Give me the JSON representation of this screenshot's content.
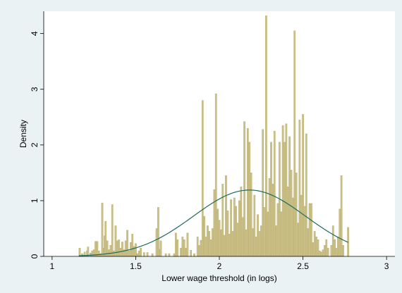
{
  "chart_data": {
    "type": "bar",
    "title": "",
    "xlabel": "Lower wage threshold (in logs)",
    "ylabel": "Density",
    "xlim": [
      0.95,
      3.05
    ],
    "ylim": [
      0,
      4.4
    ],
    "xticks": [
      {
        "value": 1,
        "label": "1"
      },
      {
        "value": 1.5,
        "label": "1.5"
      },
      {
        "value": 2,
        "label": "2"
      },
      {
        "value": 2.5,
        "label": "2.5"
      },
      {
        "value": 3,
        "label": "3"
      }
    ],
    "yticks": [
      {
        "value": 0,
        "label": "0"
      },
      {
        "value": 1,
        "label": "1"
      },
      {
        "value": 2,
        "label": "2"
      },
      {
        "value": 3,
        "label": "3"
      },
      {
        "value": 4,
        "label": "4"
      }
    ],
    "grid": false,
    "colors": {
      "bars": "#cbc188",
      "bar_edge": "#b5a96a",
      "curve": "#1d6b5c",
      "plot_bg": "#ffffff",
      "page_bg": "#eaf2f3"
    },
    "histogram": {
      "bin_width": 0.0097,
      "bins": [
        [
          1.165,
          0.15
        ],
        [
          1.18,
          0.05
        ],
        [
          1.195,
          0.08
        ],
        [
          1.21,
          0.1
        ],
        [
          1.215,
          0.17
        ],
        [
          1.23,
          0.06
        ],
        [
          1.24,
          0.1
        ],
        [
          1.25,
          0.12
        ],
        [
          1.26,
          0.27
        ],
        [
          1.27,
          0.27
        ],
        [
          1.28,
          0.1
        ],
        [
          1.29,
          0.05
        ],
        [
          1.3,
          0.96
        ],
        [
          1.31,
          0.15
        ],
        [
          1.315,
          0.37
        ],
        [
          1.32,
          0.63
        ],
        [
          1.33,
          0.28
        ],
        [
          1.34,
          0.12
        ],
        [
          1.35,
          0.2
        ],
        [
          1.36,
          0.93
        ],
        [
          1.37,
          0.1
        ],
        [
          1.38,
          0.55
        ],
        [
          1.39,
          0.28
        ],
        [
          1.4,
          0.3
        ],
        [
          1.41,
          0.15
        ],
        [
          1.42,
          0.26
        ],
        [
          1.43,
          0.12
        ],
        [
          1.44,
          0.28
        ],
        [
          1.45,
          0.47
        ],
        [
          1.46,
          0.1
        ],
        [
          1.47,
          0.25
        ],
        [
          1.48,
          0.4
        ],
        [
          1.49,
          0.18
        ],
        [
          1.5,
          0.23
        ],
        [
          1.51,
          0.05
        ],
        [
          1.52,
          0.1
        ],
        [
          1.53,
          0.15
        ],
        [
          1.55,
          0.07
        ],
        [
          1.57,
          0.07
        ],
        [
          1.6,
          0.05
        ],
        [
          1.625,
          0.5
        ],
        [
          1.635,
          0.88
        ],
        [
          1.645,
          0.13
        ],
        [
          1.65,
          0.28
        ],
        [
          1.68,
          0.05
        ],
        [
          1.7,
          0.05
        ],
        [
          1.73,
          0.05
        ],
        [
          1.74,
          0.42
        ],
        [
          1.75,
          0.3
        ],
        [
          1.77,
          0.15
        ],
        [
          1.78,
          0.35
        ],
        [
          1.79,
          0.3
        ],
        [
          1.8,
          0.15
        ],
        [
          1.81,
          0.42
        ],
        [
          1.83,
          0.11
        ],
        [
          1.85,
          0.05
        ],
        [
          1.87,
          0.35
        ],
        [
          1.88,
          0.2
        ],
        [
          1.89,
          0.29
        ],
        [
          1.9,
          2.8
        ],
        [
          1.91,
          0.72
        ],
        [
          1.92,
          0.35
        ],
        [
          1.93,
          0.55
        ],
        [
          1.94,
          0.45
        ],
        [
          1.95,
          0.3
        ],
        [
          1.96,
          0.5
        ],
        [
          1.97,
          1.2
        ],
        [
          1.98,
          2.92
        ],
        [
          1.99,
          0.85
        ],
        [
          2.0,
          0.65
        ],
        [
          2.01,
          0.48
        ],
        [
          2.02,
          1.3
        ],
        [
          2.03,
          0.38
        ],
        [
          2.04,
          1.45
        ],
        [
          2.05,
          0.82
        ],
        [
          2.06,
          0.4
        ],
        [
          2.07,
          1.02
        ],
        [
          2.08,
          0.45
        ],
        [
          2.09,
          1.05
        ],
        [
          2.1,
          0.9
        ],
        [
          2.11,
          0.6
        ],
        [
          2.12,
          1.0
        ],
        [
          2.13,
          1.25
        ],
        [
          2.14,
          0.7
        ],
        [
          2.15,
          2.42
        ],
        [
          2.16,
          0.48
        ],
        [
          2.17,
          2.3
        ],
        [
          2.18,
          2.05
        ],
        [
          2.19,
          1.5
        ],
        [
          2.2,
          0.5
        ],
        [
          2.21,
          1.1
        ],
        [
          2.22,
          0.35
        ],
        [
          2.23,
          0.75
        ],
        [
          2.24,
          0.45
        ],
        [
          2.25,
          0.55
        ],
        [
          2.26,
          2.28
        ],
        [
          2.27,
          0.88
        ],
        [
          2.28,
          4.32
        ],
        [
          2.29,
          0.8
        ],
        [
          2.3,
          1.4
        ],
        [
          2.31,
          2.05
        ],
        [
          2.32,
          1.3
        ],
        [
          2.33,
          2.25
        ],
        [
          2.34,
          0.55
        ],
        [
          2.35,
          0.95
        ],
        [
          2.36,
          2.05
        ],
        [
          2.37,
          0.8
        ],
        [
          2.38,
          2.35
        ],
        [
          2.39,
          2.05
        ],
        [
          2.4,
          2.38
        ],
        [
          2.41,
          1.25
        ],
        [
          2.42,
          2.15
        ],
        [
          2.43,
          1.55
        ],
        [
          2.44,
          1.05
        ],
        [
          2.45,
          4.05
        ],
        [
          2.46,
          1.5
        ],
        [
          2.47,
          0.6
        ],
        [
          2.48,
          2.45
        ],
        [
          2.49,
          1.1
        ],
        [
          2.5,
          2.55
        ],
        [
          2.51,
          0.9
        ],
        [
          2.52,
          2.2
        ],
        [
          2.53,
          0.5
        ],
        [
          2.54,
          0.95
        ],
        [
          2.55,
          0.95
        ],
        [
          2.56,
          0.25
        ],
        [
          2.57,
          0.45
        ],
        [
          2.58,
          0.35
        ],
        [
          2.59,
          0.3
        ],
        [
          2.6,
          0.1
        ],
        [
          2.61,
          0.08
        ],
        [
          2.62,
          0.12
        ],
        [
          2.63,
          0.2
        ],
        [
          2.64,
          0.3
        ],
        [
          2.65,
          0.15
        ],
        [
          2.67,
          0.2
        ],
        [
          2.68,
          0.55
        ],
        [
          2.69,
          0.3
        ],
        [
          2.7,
          0.15
        ],
        [
          2.71,
          0.35
        ],
        [
          2.72,
          0.85
        ],
        [
          2.73,
          1.45
        ],
        [
          2.74,
          0.2
        ],
        [
          2.77,
          0.52
        ]
      ]
    },
    "normal_curve": {
      "mean": 2.18,
      "sd": 0.335,
      "x_range": [
        1.16,
        2.77
      ]
    }
  }
}
